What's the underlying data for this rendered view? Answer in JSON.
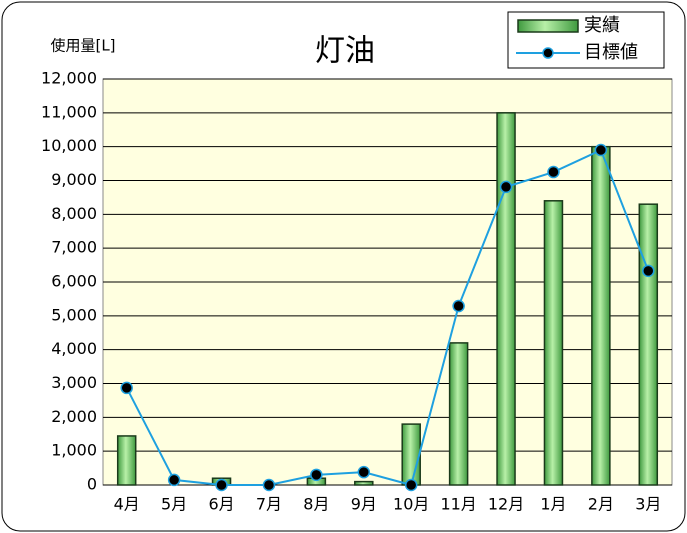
{
  "chart_data": {
    "type": "bar",
    "title": "灯油",
    "y_label": "使用量[L]",
    "categories": [
      "4月",
      "5月",
      "6月",
      "7月",
      "8月",
      "9月",
      "10月",
      "11月",
      "12月",
      "1月",
      "2月",
      "3月"
    ],
    "series": [
      {
        "name": "実績",
        "type": "bar",
        "color": "#5cb85c",
        "values": [
          1450,
          0,
          200,
          0,
          200,
          100,
          1800,
          4200,
          11000,
          8400,
          10000,
          8300
        ]
      },
      {
        "name": "目標値",
        "type": "line",
        "color": "#1ea0e0",
        "values": [
          2870,
          150,
          0,
          0,
          300,
          380,
          0,
          5290,
          8810,
          9250,
          9900,
          6330
        ]
      }
    ],
    "ylim": [
      0,
      12000
    ],
    "yticks": [
      0,
      {
        "value": 1000,
        "label": "1,000"
      },
      {
        "value": 2000,
        "label": "2,000"
      },
      {
        "value": 3000,
        "label": "3,000"
      },
      {
        "value": 4000,
        "label": "4,000"
      },
      {
        "value": 5000,
        "label": "5,000"
      },
      {
        "value": 6000,
        "label": "6,000"
      },
      {
        "value": 7000,
        "label": "7,000"
      },
      {
        "value": 8000,
        "label": "8,000"
      },
      {
        "value": 9000,
        "label": "9,000"
      },
      {
        "value": 10000,
        "label": "10,000"
      },
      {
        "value": 11000,
        "label": "11,000"
      },
      {
        "value": 12000,
        "label": "12,000"
      }
    ],
    "grid": true
  }
}
